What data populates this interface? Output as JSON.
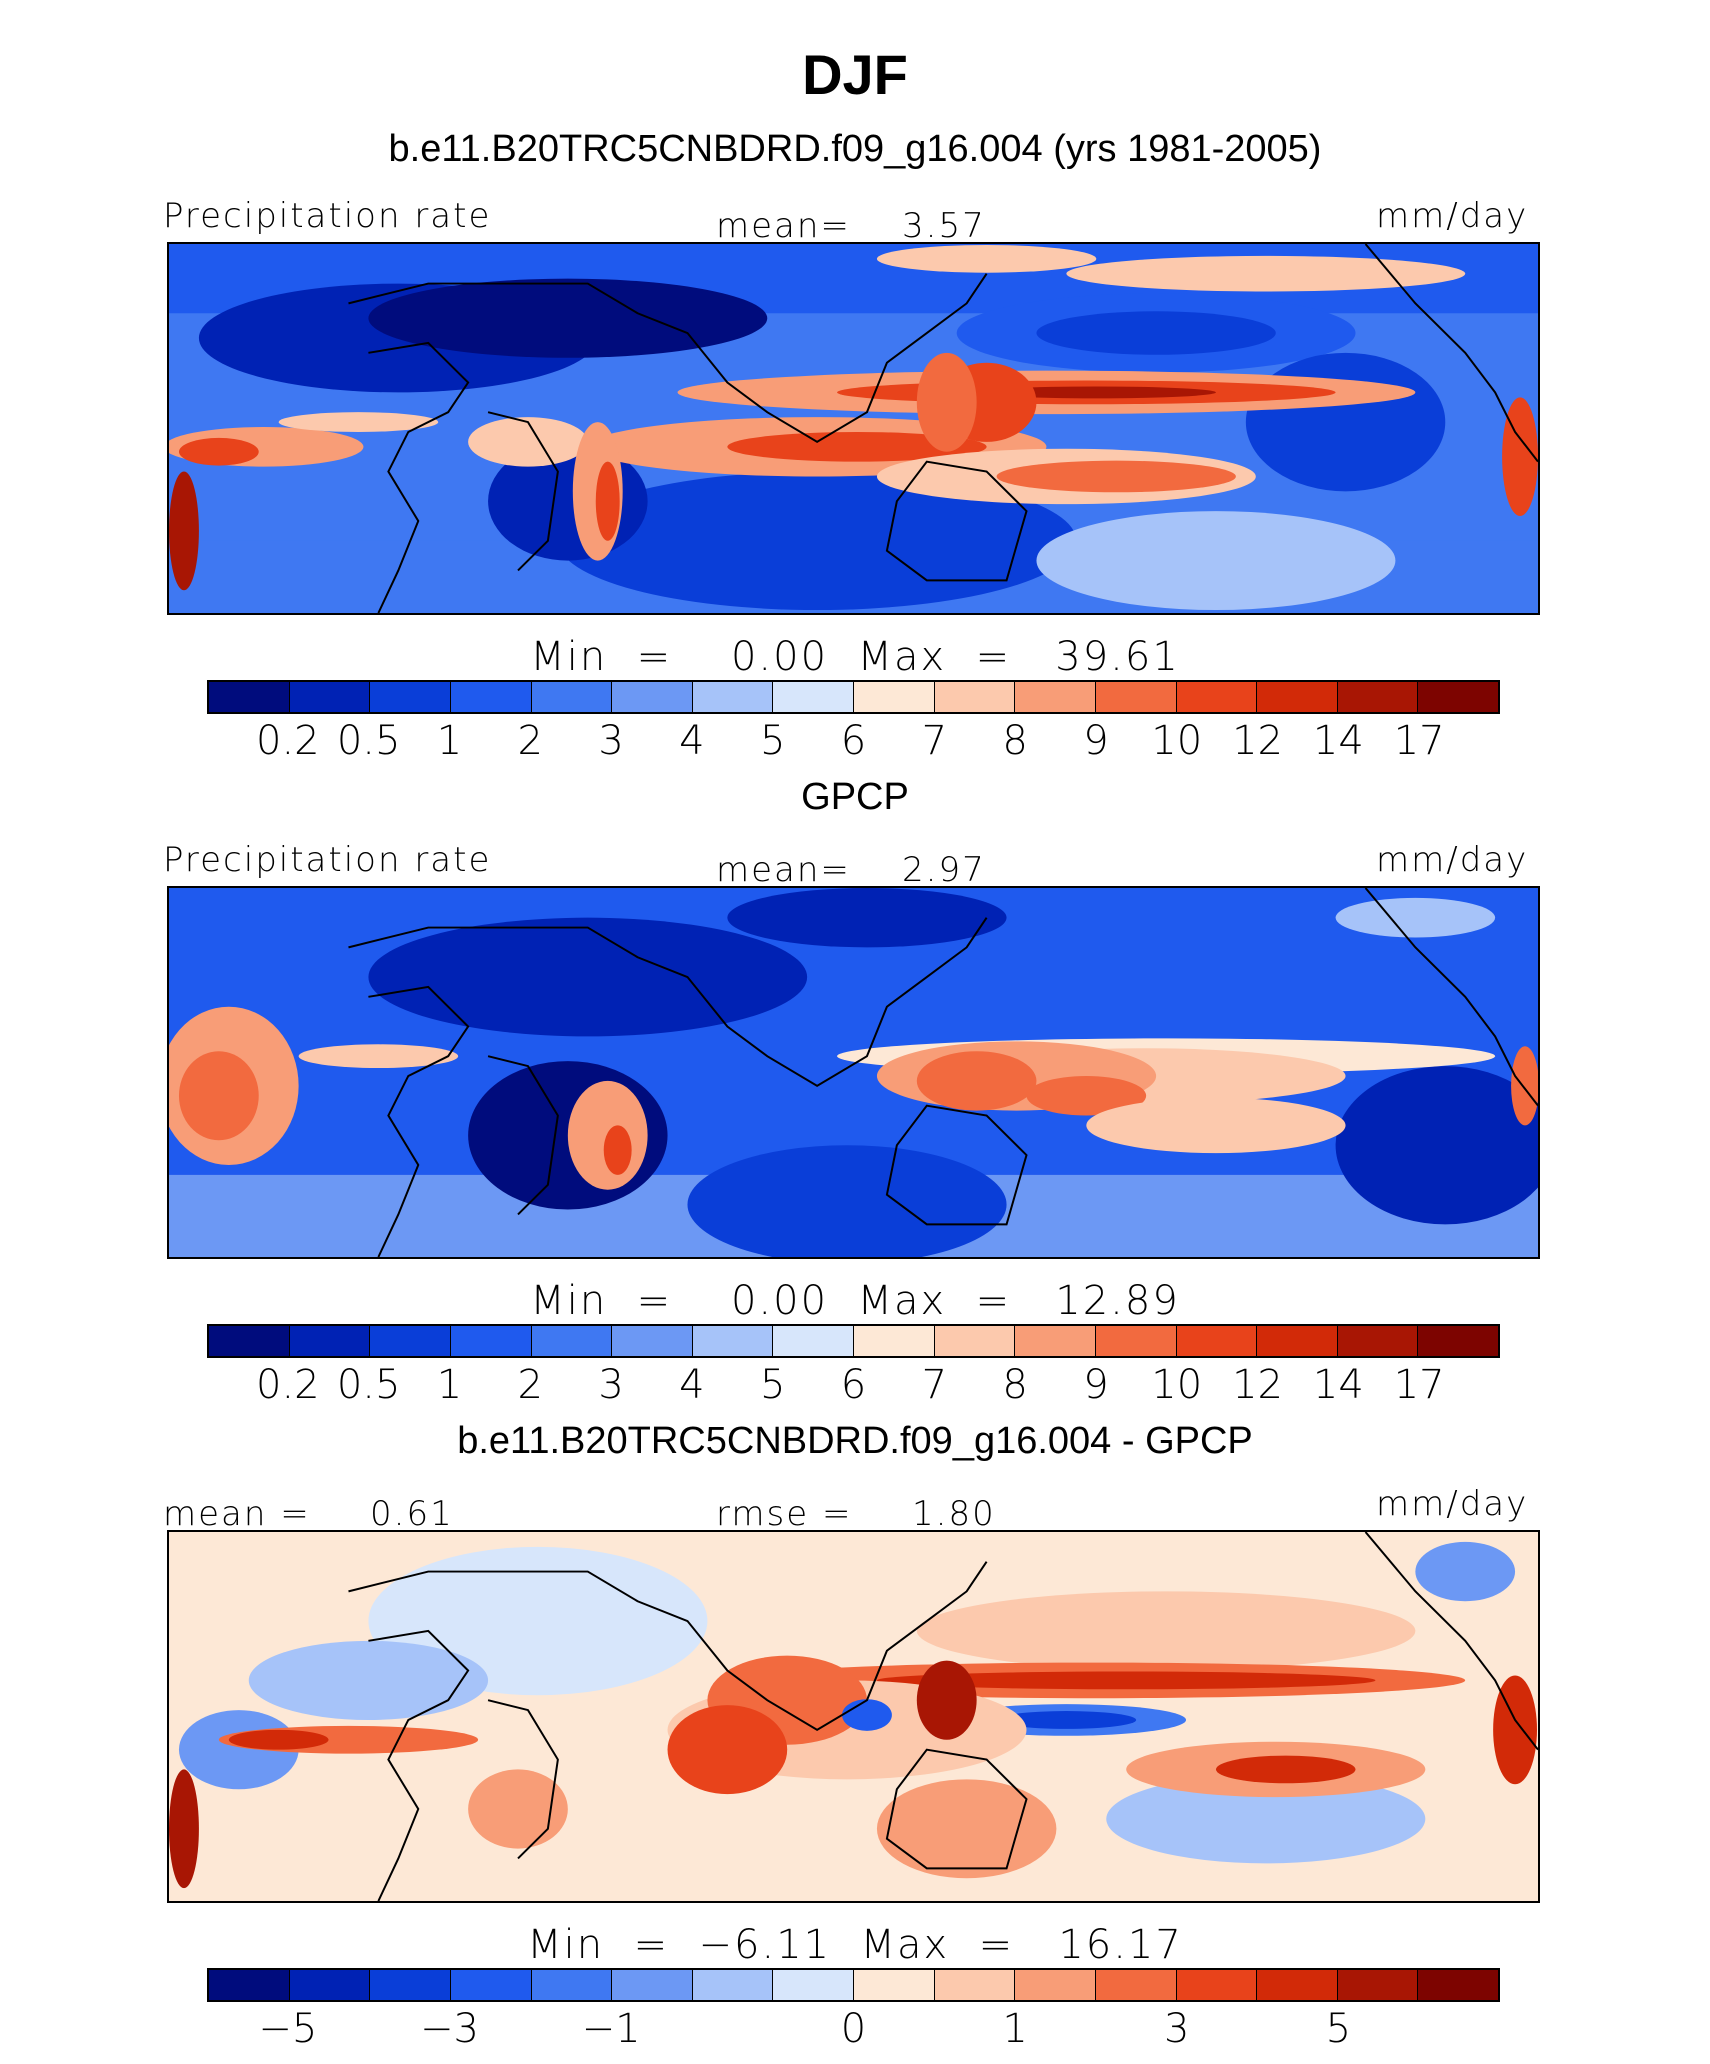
{
  "title": "DJF",
  "panels": [
    {
      "title": "b.e11.B20TRC5CNBDRD.f09_g16.004 (yrs 1981-2005)",
      "left_label": "Precipitation rate",
      "center_label": "mean=",
      "center_value": "3.57",
      "units": "mm/day",
      "minmax": "Min  =    0.00  Max  =   39.61"
    },
    {
      "title": "GPCP",
      "left_label": "Precipitation rate",
      "center_label": "mean=",
      "center_value": "2.97",
      "units": "mm/day",
      "minmax": "Min  =    0.00  Max  =   12.89"
    },
    {
      "title": "b.e11.B20TRC5CNBDRD.f09_g16.004 - GPCP",
      "left_label": "mean =",
      "left_value": "0.61",
      "center_label": "rmse =",
      "center_value": "1.80",
      "units": "mm/day",
      "minmax": "Min  =  −6.11  Max  =   16.17"
    }
  ],
  "colorbar_colors": [
    "#000c7d",
    "#0022b4",
    "#0a3ed8",
    "#1f5aee",
    "#3f78f2",
    "#6c98f4",
    "#a6c3f9",
    "#d7e6fb",
    "#fde8d6",
    "#fcc9ad",
    "#f89d77",
    "#f26a3f",
    "#e8431b",
    "#d22a08",
    "#a81604",
    "#7d0400"
  ],
  "precip_ticks": [
    "0.2",
    "0.5",
    "1",
    "2",
    "3",
    "4",
    "5",
    "6",
    "7",
    "8",
    "9",
    "10",
    "12",
    "14",
    "17"
  ],
  "diff_ticks": [
    {
      "label": "−5",
      "boundary": 1
    },
    {
      "label": "−3",
      "boundary": 3
    },
    {
      "label": "−1",
      "boundary": 5
    },
    {
      "label": "0",
      "boundary": 8
    },
    {
      "label": "1",
      "boundary": 10
    },
    {
      "label": "3",
      "boundary": 12
    },
    {
      "label": "5",
      "boundary": 14
    }
  ]
}
